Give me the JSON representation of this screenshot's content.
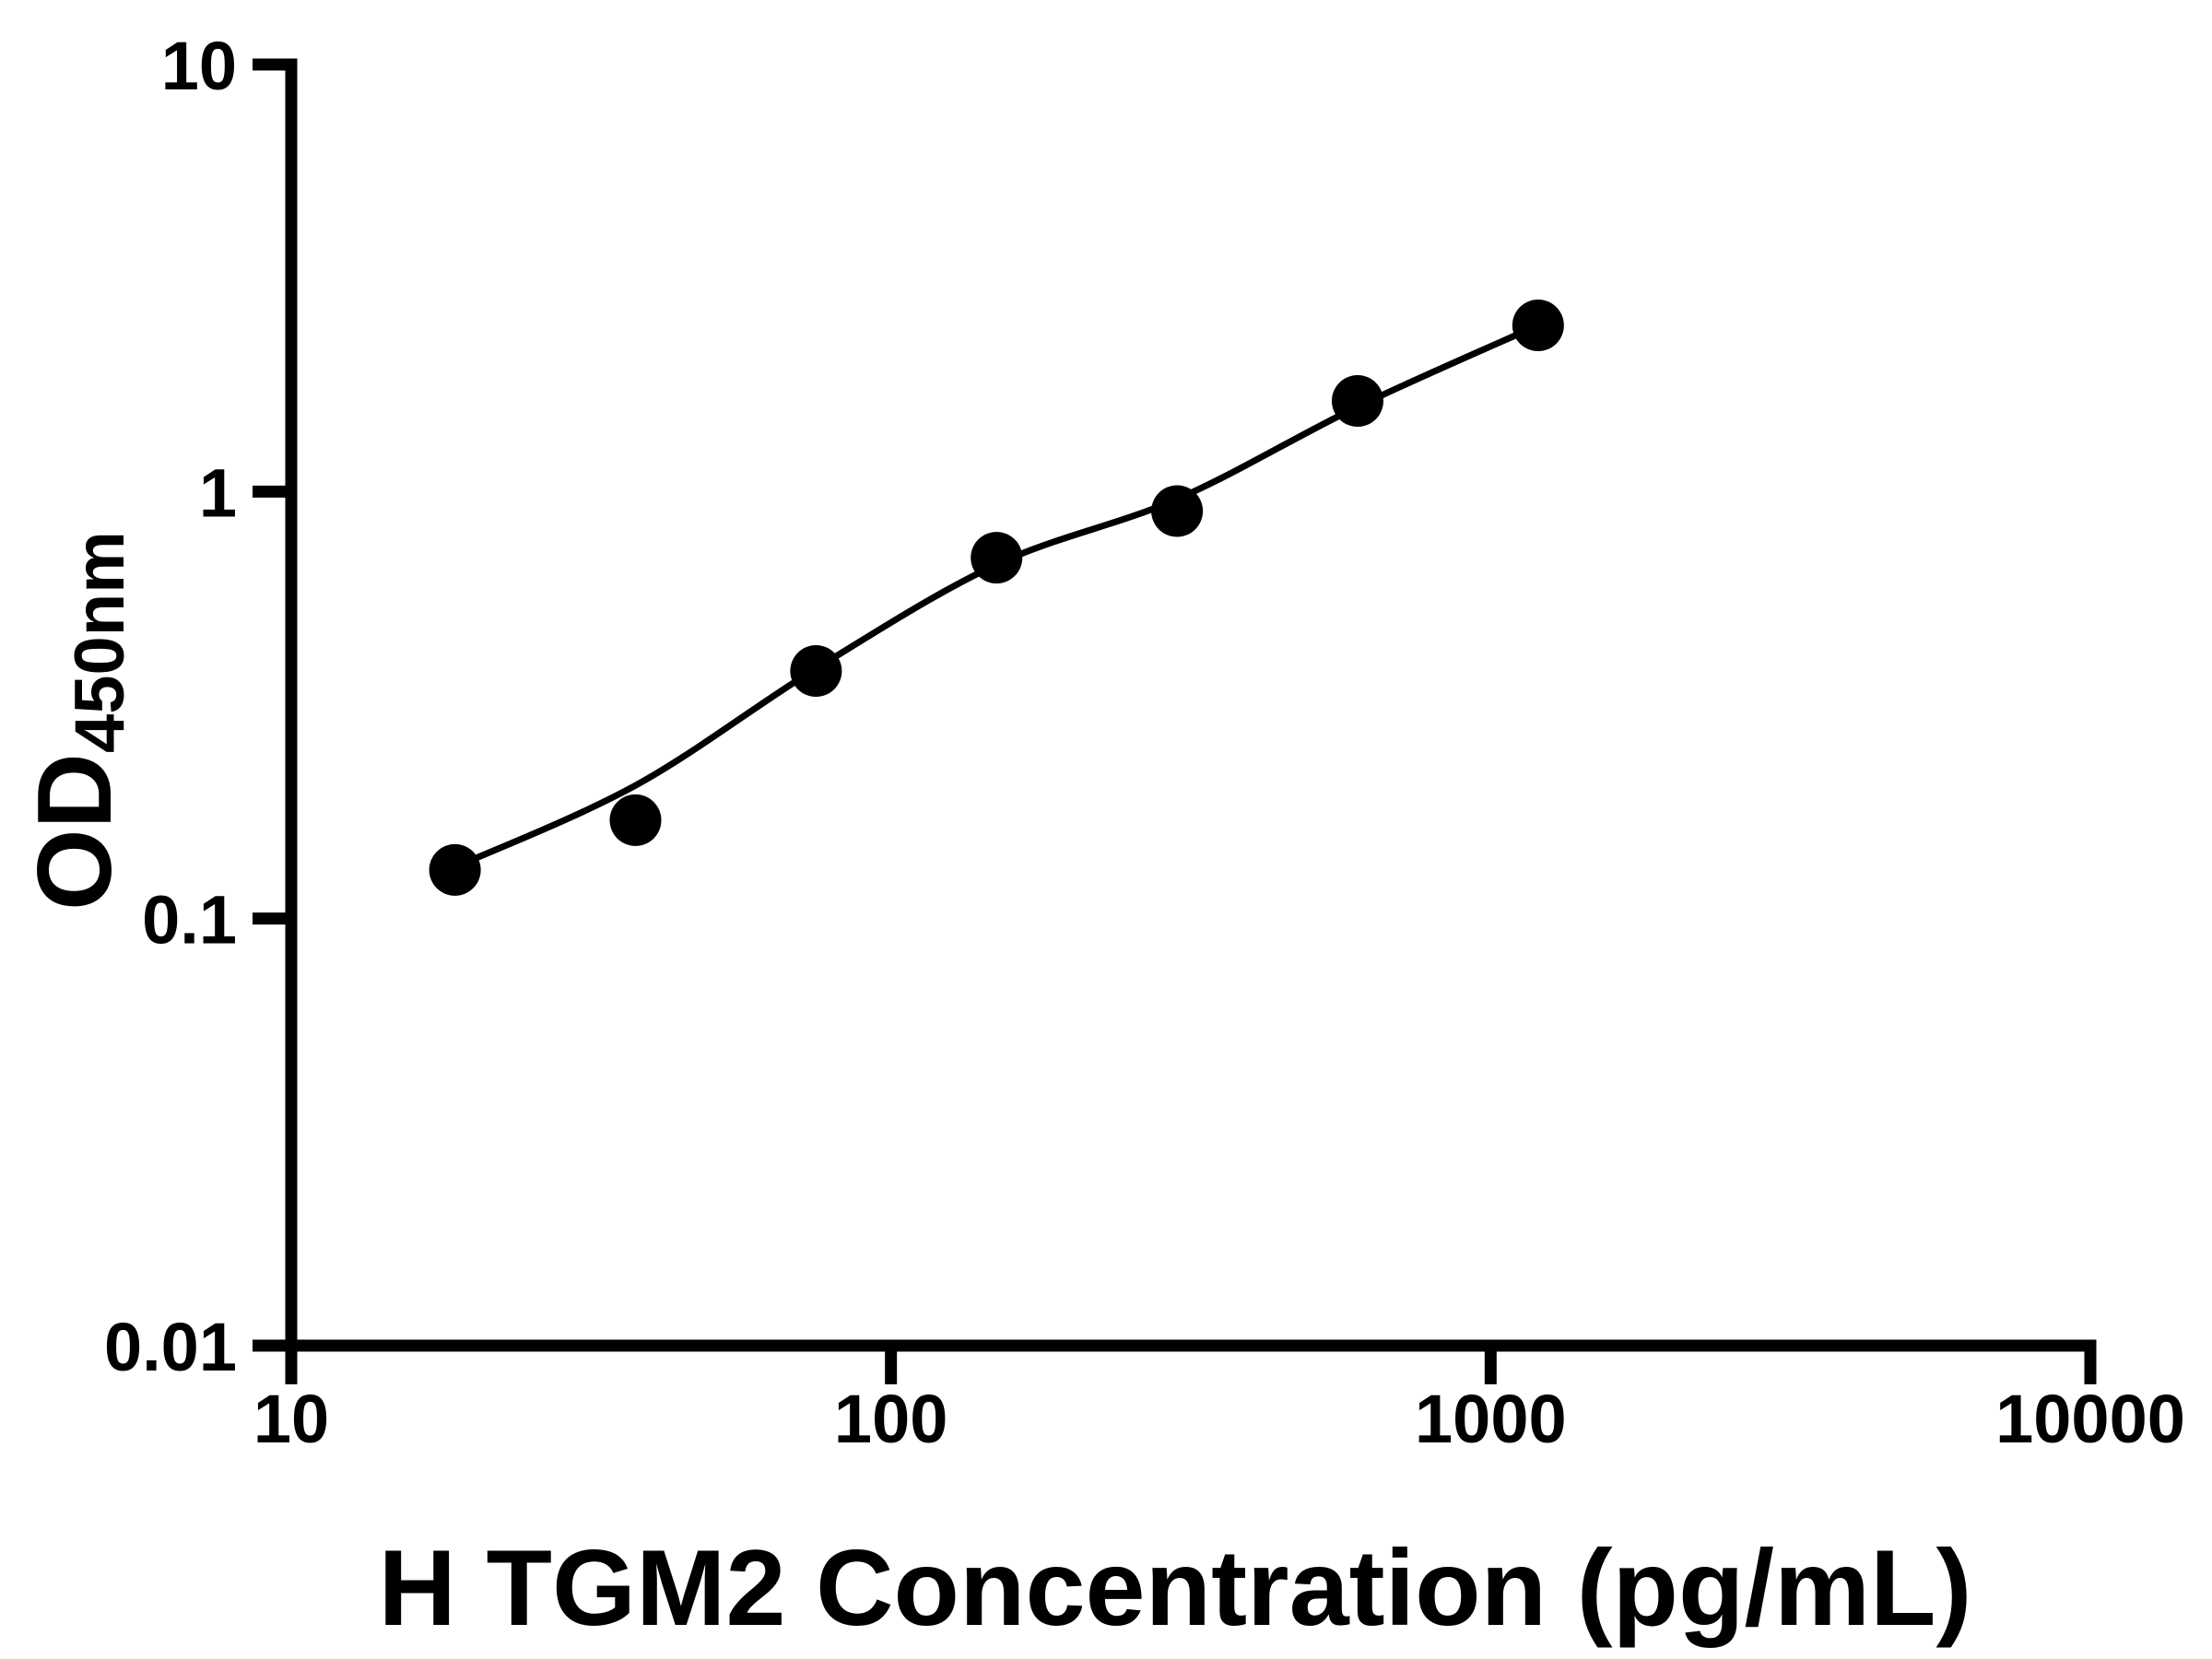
{
  "chart_data": {
    "type": "scatter",
    "title": "",
    "xlabel": "H TGM2 Concentration (pg/mL)",
    "ylabel": {
      "main": "OD",
      "sub": "450nm"
    },
    "x_scale": "log",
    "y_scale": "log",
    "xlim": [
      10,
      10000
    ],
    "ylim": [
      0.01,
      10
    ],
    "grid": false,
    "legend": null,
    "background_color": "#ffffff",
    "axis_color": "#000000",
    "x_ticks": [
      {
        "v": 10,
        "label": "10"
      },
      {
        "v": 100,
        "label": "100"
      },
      {
        "v": 1000,
        "label": "1000"
      },
      {
        "v": 10000,
        "label": "10000"
      }
    ],
    "y_ticks": [
      {
        "v": 10,
        "label": "10"
      },
      {
        "v": 1,
        "label": "1"
      },
      {
        "v": 0.1,
        "label": "0.1"
      },
      {
        "v": 0.01,
        "label": "0.01"
      }
    ],
    "series": [
      {
        "name": "standard-points",
        "marker": "filled-circle",
        "marker_radius_px": 28,
        "color": "#000000",
        "x": [
          18.75,
          37.5,
          75,
          150,
          300,
          600,
          1200
        ],
        "y": [
          0.13,
          0.17,
          0.38,
          0.7,
          0.9,
          1.63,
          2.45
        ]
      }
    ],
    "fit_curve": {
      "name": "4pl-fit-line",
      "color": "#000000",
      "x": [
        18.75,
        37.5,
        75,
        150,
        300,
        600,
        1200
      ],
      "y": [
        0.132,
        0.205,
        0.385,
        0.675,
        0.96,
        1.58,
        2.45
      ]
    }
  }
}
